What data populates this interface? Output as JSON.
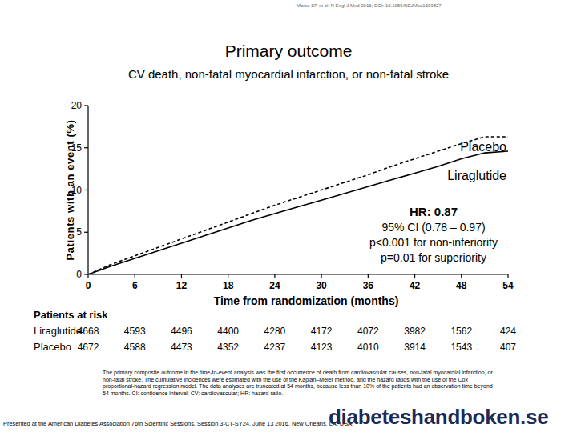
{
  "header": {
    "citation": "Marso SP et al. N Engl J Med 2016; DOI: 10.1056/NEJMoa1603827"
  },
  "chart_data": {
    "type": "line",
    "title": "Primary outcome",
    "subtitle": "CV death, non-fatal myocardial infarction, or non-fatal stroke",
    "x_label": "Time from randomization (months)",
    "y_label": "Patients with an event (%)",
    "x": [
      0,
      3,
      6,
      9,
      12,
      15,
      18,
      21,
      24,
      27,
      30,
      33,
      36,
      39,
      42,
      45,
      48,
      51,
      54
    ],
    "series": [
      {
        "name": "Placebo",
        "color": "#000000",
        "line_style": "dashed",
        "values": [
          0,
          1.2,
          2.2,
          3.2,
          4.2,
          5.2,
          6.2,
          7.2,
          8.2,
          9.1,
          10.0,
          10.9,
          11.8,
          12.8,
          13.7,
          14.6,
          15.5,
          16.3,
          16.3
        ]
      },
      {
        "name": "Liraglutide",
        "color": "#000000",
        "line_style": "solid",
        "values": [
          0,
          1.0,
          1.9,
          2.8,
          3.7,
          4.6,
          5.5,
          6.4,
          7.2,
          8.0,
          8.8,
          9.6,
          10.4,
          11.2,
          12.0,
          12.8,
          13.7,
          14.4,
          14.6
        ]
      }
    ],
    "xlim": [
      0,
      54
    ],
    "xticks": [
      0,
      6,
      12,
      18,
      24,
      30,
      36,
      42,
      48,
      54
    ],
    "ylim": [
      0,
      20
    ],
    "yticks": [
      0,
      5,
      10,
      15,
      20
    ],
    "grid": false,
    "annotations": [
      "HR: 0.87",
      "95% CI (0.78 – 0.97)",
      "p<0.001 for non-inferiority",
      "p=0.01 for superiority"
    ]
  },
  "risk_table": {
    "title": "Patients at risk",
    "rows": [
      {
        "name": "Liraglutide",
        "values": [
          4668,
          4593,
          4496,
          4400,
          4280,
          4172,
          4072,
          3982,
          1562,
          424
        ]
      },
      {
        "name": "Placebo",
        "values": [
          4672,
          4588,
          4473,
          4352,
          4237,
          4123,
          4010,
          3914,
          1543,
          407
        ]
      }
    ]
  },
  "footnote": "The primary composite outcome in the time-to-event analysis was the first occurrence of death from cardiovascular causes, non-fatal myocardial infarction, or non-fatal stroke. The cumulative incidences were estimated with the use of the Kaplan–Meier method, and the hazard ratios with the use of the Cox proportional-hazard regression model. The data analyses are truncated at 54 months, because less than 10% of the patients had an observation time beyond 54 months. CI: confidence interval; CV: cardiovascular; HR: hazard ratio.",
  "footer": {
    "presented": "Presented at the American Diabetes Association 76th Scientific Sessions, Session 3-CT-SY24. June 13 2016, New Orleans, LA, USA.",
    "logo": "diabeteshandboken.se"
  }
}
